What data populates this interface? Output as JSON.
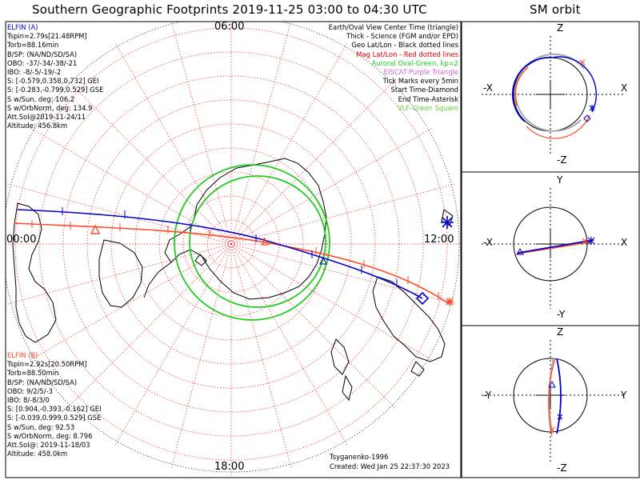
{
  "main_title": "Southern Geographic Footprints 2019-11-25 03:00 to 04:30 UTC",
  "orbit_title": "SM orbit",
  "colors": {
    "elfin_a": "#0000cc",
    "elfin_b": "#ff4a2a",
    "oval": "#22cc22",
    "eiscat": "#cc66cc",
    "vlf": "#66cc44"
  },
  "map": {
    "time_labels": {
      "top": "06:00",
      "left": "00:00",
      "right": "12:00",
      "bottom": "18:00"
    }
  },
  "elfin_a": {
    "title": "ELFIN (A)",
    "lines": [
      "Tspin=2.79s[21.48RPM]",
      "Torb=88.16min",
      "B/SP: (NA/ND/SD/SA)",
      "OBO: -37/-34/-38/-21",
      "IBO: -8/-5/-19/-2",
      "S: [-0.579,0.358,0.732] GEI",
      "S: [-0.283,-0.799,0.529] GSE",
      "S w/Sun, deg: 106.2",
      "S w/OrbNorm, deg: 134.9",
      "Att.Sol@2019-11-24/11",
      "Altitude: 456.8km"
    ]
  },
  "elfin_b": {
    "title": "ELFIN (B)",
    "lines": [
      "Tspin=2.92s[20.50RPM]",
      "Torb=88.50min",
      "B/SP: (NA/ND/SD/SA)",
      "OBO: 9/2/5/-3",
      "IBO: 8/-8/3/0",
      "S: [0.904,-0.393,-0.162] GEI",
      "S: [-0.039,0.999,0.529] GSE",
      "S w/Sun, deg: 92.53",
      "S w/OrbNorm, deg: 8.796",
      "Att.Sol@: 2019-11-18/03",
      "Altitude: 458.0km"
    ]
  },
  "legend": [
    {
      "text": "Earth/Oval View Center Time (triangle)",
      "color": "#000000"
    },
    {
      "text": "Thick - Science (FGM and/or EPD)",
      "color": "#000000"
    },
    {
      "text": "Geo Lat/Lon - Black dotted lines",
      "color": "#000000"
    },
    {
      "text": "Mag Lat/Lon - Red dotted lines",
      "color": "#ee0000"
    },
    {
      "text": "Auroral Oval-Green, kp=2",
      "color": "#22cc22"
    },
    {
      "text": "EISCAT-Purple Triangle",
      "color": "#cc66cc"
    },
    {
      "text": "Tick Marks every 5min",
      "color": "#000000"
    },
    {
      "text": "Start Time-Diamond",
      "color": "#000000"
    },
    {
      "text": "End Time-Asterisk",
      "color": "#000000"
    },
    {
      "text": "VLF-Green Square",
      "color": "#66cc44"
    }
  ],
  "model": "Tsyganenko-1996",
  "created": "Created: Wed Jan 25 22:37:30 2023",
  "orbit_panels": [
    {
      "top": "Z",
      "bottom": "-Z",
      "left": "-X",
      "right": "X"
    },
    {
      "top": "Y",
      "bottom": "-Y",
      "left": "-X",
      "right": "X"
    },
    {
      "top": "Z",
      "bottom": "-Z",
      "left": "-Y",
      "right": "Y"
    }
  ]
}
